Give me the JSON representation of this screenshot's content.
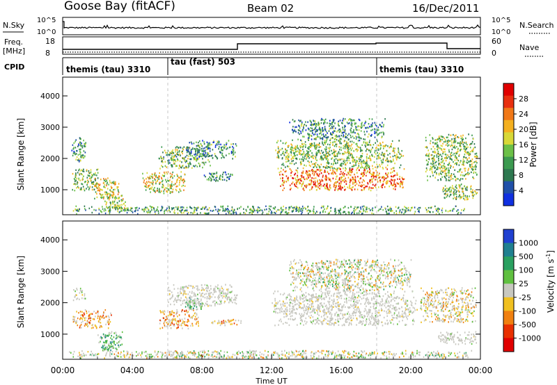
{
  "header": {
    "station": "Goose Bay (fitACF)",
    "beam": "Beam 02",
    "date": "16/Dec/2011"
  },
  "strip": {
    "nsky_label": "N.Sky",
    "nsearch_label": "N.Search",
    "left_ticks": [
      "10^5",
      "10^0"
    ],
    "right_ticks": [
      "10^5",
      "10^0"
    ],
    "freq_label": "Freq.",
    "freq_unit": "[MHz]",
    "freq_ticks": [
      "18",
      "8"
    ],
    "nave_ticks": [
      "60",
      "0"
    ],
    "nave_label": "Nave",
    "cpid_label": "CPID",
    "cpid_segments": [
      "themis (tau) 3310",
      "tau (fast) 503",
      "themis (tau) 3310"
    ]
  },
  "chart_data": [
    {
      "type": "heatmap",
      "panel": "power",
      "ylabel": "Slant Range [km]",
      "ylim": [
        200,
        4600
      ],
      "yticks": [
        "1000",
        "2000",
        "3000",
        "4000"
      ],
      "xlim_hours": [
        0,
        24
      ],
      "colorbar_label": "Power [dB]",
      "colorbar_ticks": [
        "28",
        "24",
        "20",
        "16",
        "12",
        "8",
        "4"
      ],
      "colorbar_range": [
        0,
        30
      ],
      "colors": [
        "#1030e0",
        "#2050a8",
        "#2e7850",
        "#3c9a50",
        "#6cc048",
        "#d8d838",
        "#f4b020",
        "#f07818",
        "#e83010",
        "#e00000"
      ],
      "regions": [
        {
          "t": [
            0.5,
            1.3
          ],
          "r": [
            1900,
            2700
          ],
          "level": 0.3
        },
        {
          "t": [
            0.5,
            2.0
          ],
          "r": [
            1000,
            1700
          ],
          "level": 0.45
        },
        {
          "t": [
            1.8,
            3.2
          ],
          "r": [
            700,
            1400
          ],
          "level": 0.55
        },
        {
          "t": [
            2.4,
            3.6
          ],
          "r": [
            400,
            900
          ],
          "level": 0.5
        },
        {
          "t": [
            4.5,
            7.0
          ],
          "r": [
            900,
            1600
          ],
          "level": 0.55
        },
        {
          "t": [
            5.5,
            8.5
          ],
          "r": [
            1700,
            2400
          ],
          "level": 0.4
        },
        {
          "t": [
            7.0,
            10.0
          ],
          "r": [
            2000,
            2600
          ],
          "level": 0.3
        },
        {
          "t": [
            8.0,
            9.8
          ],
          "r": [
            1300,
            1600
          ],
          "level": 0.3
        },
        {
          "t": [
            12.4,
            19.6
          ],
          "r": [
            1000,
            1700
          ],
          "level": 0.75
        },
        {
          "t": [
            12.2,
            19.6
          ],
          "r": [
            1700,
            2600
          ],
          "level": 0.45
        },
        {
          "t": [
            13.0,
            18.5
          ],
          "r": [
            2600,
            3300
          ],
          "level": 0.3
        },
        {
          "t": [
            20.8,
            23.8
          ],
          "r": [
            1300,
            2800
          ],
          "level": 0.45
        },
        {
          "t": [
            21.8,
            23.8
          ],
          "r": [
            700,
            1200
          ],
          "level": 0.45
        },
        {
          "t": [
            0.3,
            23.5
          ],
          "r": [
            250,
            500
          ],
          "level": 0.35
        }
      ]
    },
    {
      "type": "heatmap",
      "panel": "velocity",
      "ylabel": "Slant Range [km]",
      "ylim": [
        200,
        4600
      ],
      "yticks": [
        "1000",
        "2000",
        "3000",
        "4000"
      ],
      "xlim_hours": [
        0,
        24
      ],
      "xticks": [
        "00:00",
        "04:00",
        "08:00",
        "12:00",
        "16:00",
        "20:00",
        "00:00"
      ],
      "xlabel": "Time UT",
      "colorbar_label": "Velocity [m s",
      "colorbar_label_sup": "-1",
      "colorbar_ticks": [
        "1000",
        "500",
        "100",
        "25",
        "-25",
        "-100",
        "-500",
        "-1000"
      ],
      "colors": [
        "#2040d0",
        "#208090",
        "#2aa060",
        "#60c040",
        "#c8c8c0",
        "#f0c020",
        "#f08010",
        "#e83000",
        "#e00000"
      ],
      "regions": [
        {
          "t": [
            0.5,
            1.3
          ],
          "r": [
            2100,
            2500
          ],
          "kind": "g"
        },
        {
          "t": [
            0.5,
            2.8
          ],
          "r": [
            1200,
            1800
          ],
          "kind": "neg"
        },
        {
          "t": [
            2.0,
            3.4
          ],
          "r": [
            500,
            1100
          ],
          "kind": "pos"
        },
        {
          "t": [
            5.5,
            7.8
          ],
          "r": [
            1200,
            1800
          ],
          "kind": "neg"
        },
        {
          "t": [
            7.0,
            8.0
          ],
          "r": [
            1800,
            2200
          ],
          "kind": "pos"
        },
        {
          "t": [
            6.0,
            10.0
          ],
          "r": [
            1900,
            2600
          ],
          "kind": "g"
        },
        {
          "t": [
            8.5,
            10.3
          ],
          "r": [
            1300,
            1500
          ],
          "kind": "neg"
        },
        {
          "t": [
            12.0,
            20.4
          ],
          "r": [
            1300,
            2400
          ],
          "kind": "g"
        },
        {
          "t": [
            13.0,
            20.0
          ],
          "r": [
            2400,
            3400
          ],
          "kind": "mix"
        },
        {
          "t": [
            20.5,
            23.8
          ],
          "r": [
            1400,
            2500
          ],
          "kind": "mixneg"
        },
        {
          "t": [
            21.5,
            23.8
          ],
          "r": [
            700,
            1100
          ],
          "kind": "g"
        },
        {
          "t": [
            0.3,
            23.5
          ],
          "r": [
            250,
            500
          ],
          "kind": "mix"
        }
      ]
    }
  ]
}
